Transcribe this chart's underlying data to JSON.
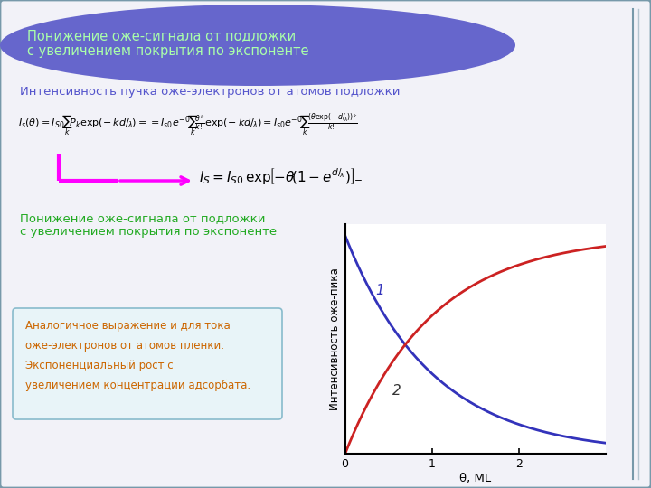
{
  "bg_header_color": "#6666cc",
  "bg_main_color": "#f2f2f8",
  "border_color": "#7799aa",
  "header_text_line1": "Понижение оже-сигнала от подложки",
  "header_text_line2": "с увеличением покрытия по экспоненте",
  "header_text_color": "#aaffaa",
  "title_fontsize": 10.5,
  "text1": "Интенсивность пучка оже-электронов от атомов подложки",
  "text1_color": "#5555cc",
  "text1_fontsize": 9.5,
  "text2_line1": "Понижение оже-сигнала от подложки",
  "text2_line2": "с увеличением покрытия по экспоненте",
  "text2_color": "#22aa22",
  "text2_fontsize": 9.5,
  "text3_line1": "Аналогичное выражение и для тока",
  "text3_line2": "оже-электронов от атомов пленки.",
  "text3_line3": "Экспоненциальный рост с",
  "text3_line4": "увеличением концентрации адсорбата.",
  "text3_color": "#cc6600",
  "text3_fontsize": 8.5,
  "formula_color": "#000000",
  "arrow_color": "#ff00ff",
  "curve1_color": "#3333bb",
  "curve2_color": "#cc2222",
  "curve1_label": "1",
  "curve2_label": "2",
  "ylabel": "Интенсивность оже-пика",
  "xlabel": "θ, ML",
  "xlim": [
    0,
    3.0
  ],
  "ylim": [
    0,
    1.05
  ],
  "xticks": [
    0,
    1,
    2
  ],
  "plot_bg": "#ffffff",
  "theta_max": 3.0
}
